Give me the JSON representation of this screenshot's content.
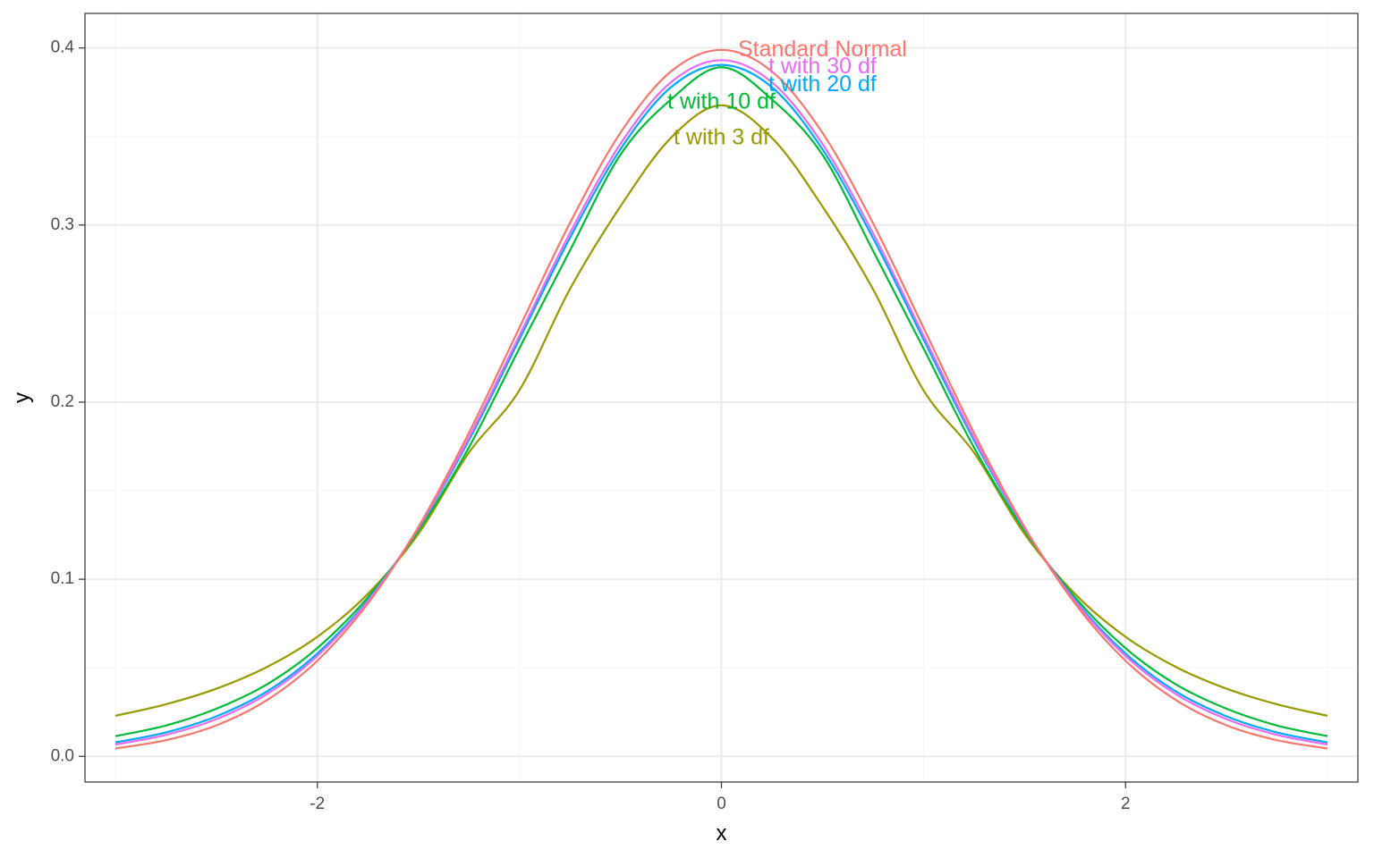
{
  "chart_data": {
    "type": "line",
    "title": "",
    "xlabel": "x",
    "ylabel": "y",
    "xlim": [
      -3.15,
      3.15
    ],
    "ylim": [
      -0.0145,
      0.4195
    ],
    "x_ticks": [
      -2,
      0,
      2
    ],
    "x_tick_labels": [
      "-2",
      "0",
      "2"
    ],
    "y_ticks": [
      0.0,
      0.1,
      0.2,
      0.3,
      0.4
    ],
    "y_tick_labels": [
      "0.0",
      "0.1",
      "0.2",
      "0.3",
      "0.4"
    ],
    "grid": true,
    "legend": "none",
    "theme": {
      "background": "#ffffff",
      "panel_border": "#333333",
      "grid_major": "#ebebeb",
      "grid_minor": "#f5f5f5"
    },
    "series": [
      {
        "name": "Standard Normal",
        "color": "#F8766D",
        "x": [
          -3,
          -2.75,
          -2.5,
          -2.25,
          -2,
          -1.75,
          -1.5,
          -1.25,
          -1,
          -0.75,
          -0.5,
          -0.25,
          0,
          0.25,
          0.5,
          0.75,
          1,
          1.25,
          1.5,
          1.75,
          2,
          2.25,
          2.5,
          2.75,
          3
        ],
        "y": [
          0.0044,
          0.0091,
          0.0175,
          0.0317,
          0.054,
          0.0863,
          0.1295,
          0.1826,
          0.242,
          0.3011,
          0.3521,
          0.3867,
          0.3989,
          0.3867,
          0.3521,
          0.3011,
          0.242,
          0.1826,
          0.1295,
          0.0863,
          0.054,
          0.0317,
          0.0175,
          0.0091,
          0.0044
        ]
      },
      {
        "name": "t with 30 df",
        "color": "#E76BF3",
        "x": [
          -3,
          -2.75,
          -2.5,
          -2.25,
          -2,
          -1.75,
          -1.5,
          -1.25,
          -1,
          -0.75,
          -0.5,
          -0.25,
          0,
          0.25,
          0.5,
          0.75,
          1,
          1.25,
          1.5,
          1.75,
          2,
          2.25,
          2.5,
          2.75,
          3
        ],
        "y": [
          0.0067,
          0.0121,
          0.021,
          0.0351,
          0.0567,
          0.0876,
          0.1289,
          0.1799,
          0.2376,
          0.2954,
          0.3458,
          0.3806,
          0.3931,
          0.3806,
          0.3458,
          0.2954,
          0.2376,
          0.1799,
          0.1289,
          0.0876,
          0.0567,
          0.0351,
          0.021,
          0.0121,
          0.0067
        ]
      },
      {
        "name": "t with 20 df",
        "color": "#00A9FF",
        "x": [
          -3,
          -2.75,
          -2.5,
          -2.25,
          -2,
          -1.75,
          -1.5,
          -1.25,
          -1,
          -0.75,
          -0.5,
          -0.25,
          0,
          0.25,
          0.5,
          0.75,
          1,
          1.25,
          1.5,
          1.75,
          2,
          2.25,
          2.5,
          2.75,
          3
        ],
        "y": [
          0.0079,
          0.0135,
          0.0226,
          0.0366,
          0.0581,
          0.0883,
          0.1286,
          0.1785,
          0.2355,
          0.2927,
          0.3428,
          0.3778,
          0.3904,
          0.3778,
          0.3428,
          0.2927,
          0.2355,
          0.1785,
          0.1286,
          0.0883,
          0.0581,
          0.0366,
          0.0226,
          0.0135,
          0.0079
        ]
      },
      {
        "name": "t with 10 df",
        "color": "#00BA38",
        "x": [
          -3,
          -2.75,
          -2.5,
          -2.25,
          -2,
          -1.75,
          -1.5,
          -1.25,
          -1,
          -0.75,
          -0.5,
          -0.25,
          0,
          0.25,
          0.5,
          0.75,
          1,
          1.25,
          1.5,
          1.75,
          2,
          2.25,
          2.5,
          2.75,
          3
        ],
        "y": [
          0.0114,
          0.0174,
          0.0269,
          0.0406,
          0.0611,
          0.0898,
          0.1274,
          0.1744,
          0.2304,
          0.2856,
          0.3397,
          0.3709,
          0.3891,
          0.3709,
          0.3397,
          0.2856,
          0.2304,
          0.1744,
          0.1274,
          0.0898,
          0.0611,
          0.0406,
          0.0269,
          0.0174,
          0.0114
        ]
      },
      {
        "name": "t with 3 df",
        "color": "#999900",
        "x": [
          -3,
          -2.75,
          -2.5,
          -2.25,
          -2,
          -1.75,
          -1.5,
          -1.25,
          -1,
          -0.75,
          -0.5,
          -0.25,
          0,
          0.25,
          0.5,
          0.75,
          1,
          1.25,
          1.5,
          1.75,
          2,
          2.25,
          2.5,
          2.75,
          3
        ],
        "y": [
          0.0229,
          0.0294,
          0.0382,
          0.0504,
          0.0675,
          0.0917,
          0.1256,
          0.1715,
          0.2067,
          0.2638,
          0.3105,
          0.3492,
          0.3676,
          0.3492,
          0.3105,
          0.2638,
          0.2067,
          0.1715,
          0.1256,
          0.0917,
          0.0675,
          0.0504,
          0.0382,
          0.0294,
          0.0229
        ]
      }
    ],
    "annotations": [
      {
        "text": "Standard Normal",
        "x": 0.5,
        "y": 0.3985,
        "color": "#F8766D"
      },
      {
        "text": "t with 30 df",
        "x": 0.5,
        "y": 0.389,
        "color": "#E76BF3"
      },
      {
        "text": "t with 20 df",
        "x": 0.5,
        "y": 0.379,
        "color": "#00A9FF"
      },
      {
        "text": "t with 10 df",
        "x": 0,
        "y": 0.369,
        "color": "#00BA38"
      },
      {
        "text": "t with 3 df",
        "x": 0,
        "y": 0.349,
        "color": "#999900"
      }
    ]
  }
}
